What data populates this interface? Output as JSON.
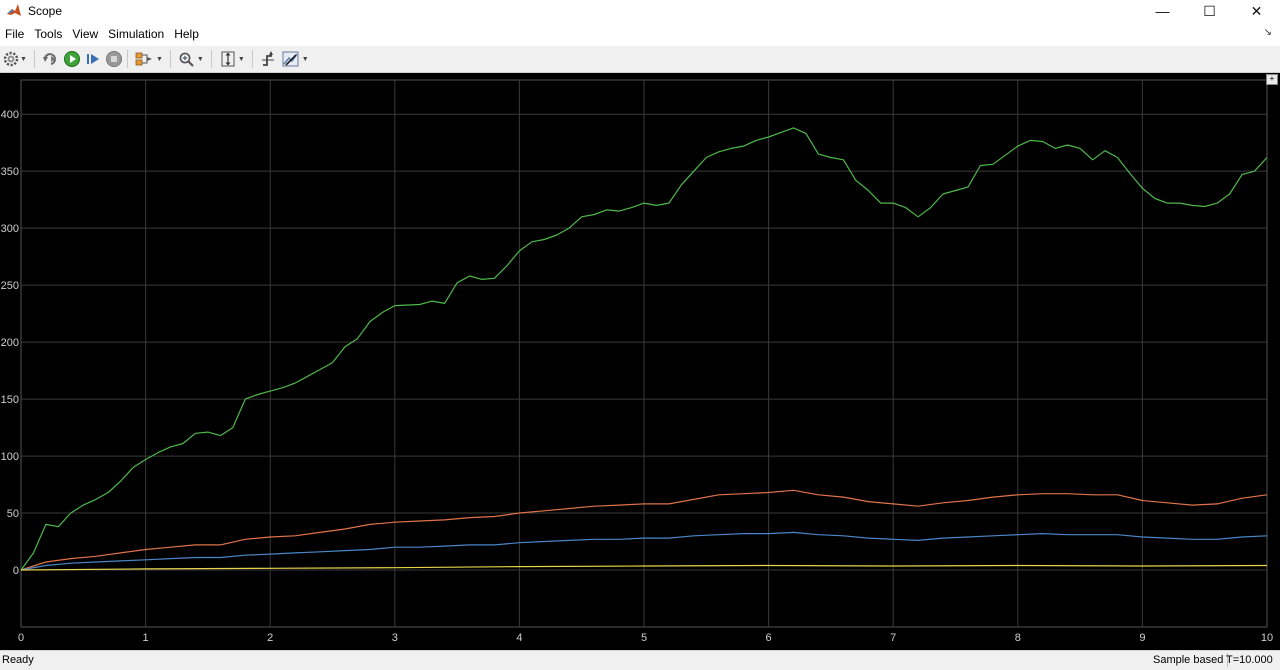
{
  "window": {
    "title": "Scope",
    "minimize_glyph": "—",
    "maximize_glyph": "☐",
    "close_glyph": "✕"
  },
  "menu": {
    "items": [
      "File",
      "Tools",
      "View",
      "Simulation",
      "Help"
    ],
    "undock_glyph": "↘"
  },
  "toolbar": {
    "icons": [
      "settings-icon",
      "step-back-icon",
      "run-icon",
      "step-forward-icon",
      "stop-icon",
      "highlight-block-icon",
      "zoom-icon",
      "scale-axes-icon",
      "triggers-icon",
      "cursor-measurements-icon"
    ]
  },
  "chart_data": {
    "type": "line",
    "xlim": [
      0,
      10
    ],
    "ylim": [
      -50,
      430
    ],
    "x_ticks": [
      0,
      1,
      2,
      3,
      4,
      5,
      6,
      7,
      8,
      9,
      10
    ],
    "y_ticks": [
      0,
      50,
      100,
      150,
      200,
      250,
      300,
      350,
      400
    ],
    "grid": true,
    "background": "#000000",
    "grid_color": "#3a3a3a",
    "tick_color": "#cfcfcf",
    "series": [
      {
        "color": "#4fb84a",
        "points": [
          [
            0,
            0
          ],
          [
            0.1,
            15
          ],
          [
            0.2,
            40
          ],
          [
            0.3,
            38
          ],
          [
            0.4,
            50
          ],
          [
            0.5,
            57
          ],
          [
            0.6,
            62
          ],
          [
            0.7,
            68
          ],
          [
            0.8,
            78
          ],
          [
            0.9,
            90
          ],
          [
            1.0,
            97
          ],
          [
            1.1,
            103
          ],
          [
            1.2,
            108
          ],
          [
            1.3,
            111
          ],
          [
            1.4,
            120
          ],
          [
            1.5,
            121
          ],
          [
            1.6,
            118
          ],
          [
            1.7,
            125
          ],
          [
            1.8,
            150
          ],
          [
            1.9,
            154
          ],
          [
            2.0,
            157
          ],
          [
            2.1,
            160
          ],
          [
            2.2,
            164
          ],
          [
            2.3,
            170
          ],
          [
            2.4,
            176
          ],
          [
            2.5,
            182
          ],
          [
            2.6,
            196
          ],
          [
            2.7,
            203
          ],
          [
            2.8,
            218
          ],
          [
            2.9,
            226
          ],
          [
            3.0,
            232
          ],
          [
            3.2,
            233
          ],
          [
            3.3,
            236
          ],
          [
            3.4,
            234
          ],
          [
            3.5,
            252
          ],
          [
            3.6,
            258
          ],
          [
            3.7,
            255
          ],
          [
            3.8,
            256
          ],
          [
            3.9,
            267
          ],
          [
            4.0,
            280
          ],
          [
            4.1,
            288
          ],
          [
            4.2,
            290
          ],
          [
            4.3,
            294
          ],
          [
            4.4,
            300
          ],
          [
            4.5,
            310
          ],
          [
            4.6,
            312
          ],
          [
            4.7,
            316
          ],
          [
            4.8,
            315
          ],
          [
            4.9,
            318
          ],
          [
            5.0,
            322
          ],
          [
            5.1,
            320
          ],
          [
            5.2,
            322
          ],
          [
            5.3,
            338
          ],
          [
            5.4,
            350
          ],
          [
            5.5,
            362
          ],
          [
            5.6,
            367
          ],
          [
            5.7,
            370
          ],
          [
            5.8,
            372
          ],
          [
            5.9,
            377
          ],
          [
            6.0,
            380
          ],
          [
            6.1,
            384
          ],
          [
            6.2,
            388
          ],
          [
            6.3,
            383
          ],
          [
            6.4,
            365
          ],
          [
            6.5,
            362
          ],
          [
            6.6,
            360
          ],
          [
            6.7,
            342
          ],
          [
            6.8,
            333
          ],
          [
            6.9,
            322
          ],
          [
            7.0,
            322
          ],
          [
            7.1,
            318
          ],
          [
            7.2,
            310
          ],
          [
            7.3,
            318
          ],
          [
            7.4,
            330
          ],
          [
            7.5,
            333
          ],
          [
            7.6,
            336
          ],
          [
            7.7,
            355
          ],
          [
            7.8,
            356
          ],
          [
            7.9,
            364
          ],
          [
            8.0,
            372
          ],
          [
            8.1,
            377
          ],
          [
            8.2,
            376
          ],
          [
            8.3,
            370
          ],
          [
            8.4,
            373
          ],
          [
            8.5,
            370
          ],
          [
            8.6,
            360
          ],
          [
            8.7,
            368
          ],
          [
            8.8,
            362
          ],
          [
            8.9,
            348
          ],
          [
            9.0,
            335
          ],
          [
            9.1,
            326
          ],
          [
            9.2,
            322
          ],
          [
            9.3,
            322
          ],
          [
            9.4,
            320
          ],
          [
            9.5,
            319
          ],
          [
            9.6,
            322
          ],
          [
            9.7,
            330
          ],
          [
            9.8,
            347
          ],
          [
            9.9,
            350
          ],
          [
            10.0,
            362
          ]
        ]
      },
      {
        "color": "#e0734a",
        "points": [
          [
            0,
            0
          ],
          [
            0.2,
            7
          ],
          [
            0.4,
            10
          ],
          [
            0.6,
            12
          ],
          [
            0.8,
            15
          ],
          [
            1.0,
            18
          ],
          [
            1.2,
            20
          ],
          [
            1.4,
            22
          ],
          [
            1.6,
            22
          ],
          [
            1.8,
            27
          ],
          [
            2.0,
            29
          ],
          [
            2.2,
            30
          ],
          [
            2.4,
            33
          ],
          [
            2.6,
            36
          ],
          [
            2.8,
            40
          ],
          [
            3.0,
            42
          ],
          [
            3.2,
            43
          ],
          [
            3.4,
            44
          ],
          [
            3.6,
            46
          ],
          [
            3.8,
            47
          ],
          [
            4.0,
            50
          ],
          [
            4.2,
            52
          ],
          [
            4.4,
            54
          ],
          [
            4.6,
            56
          ],
          [
            4.8,
            57
          ],
          [
            5.0,
            58
          ],
          [
            5.2,
            58
          ],
          [
            5.4,
            62
          ],
          [
            5.6,
            66
          ],
          [
            5.8,
            67
          ],
          [
            6.0,
            68
          ],
          [
            6.2,
            70
          ],
          [
            6.4,
            66
          ],
          [
            6.6,
            64
          ],
          [
            6.8,
            60
          ],
          [
            7.0,
            58
          ],
          [
            7.2,
            56
          ],
          [
            7.4,
            59
          ],
          [
            7.6,
            61
          ],
          [
            7.8,
            64
          ],
          [
            8.0,
            66
          ],
          [
            8.2,
            67
          ],
          [
            8.4,
            67
          ],
          [
            8.6,
            66
          ],
          [
            8.8,
            66
          ],
          [
            9.0,
            61
          ],
          [
            9.2,
            59
          ],
          [
            9.4,
            57
          ],
          [
            9.6,
            58
          ],
          [
            9.8,
            63
          ],
          [
            10.0,
            66
          ]
        ]
      },
      {
        "color": "#4a86c8",
        "points": [
          [
            0,
            0
          ],
          [
            0.2,
            4
          ],
          [
            0.4,
            6
          ],
          [
            0.6,
            7
          ],
          [
            0.8,
            8
          ],
          [
            1.0,
            9
          ],
          [
            1.2,
            10
          ],
          [
            1.4,
            11
          ],
          [
            1.6,
            11
          ],
          [
            1.8,
            13
          ],
          [
            2.0,
            14
          ],
          [
            2.2,
            15
          ],
          [
            2.4,
            16
          ],
          [
            2.6,
            17
          ],
          [
            2.8,
            18
          ],
          [
            3.0,
            20
          ],
          [
            3.2,
            20
          ],
          [
            3.4,
            21
          ],
          [
            3.6,
            22
          ],
          [
            3.8,
            22
          ],
          [
            4.0,
            24
          ],
          [
            4.2,
            25
          ],
          [
            4.4,
            26
          ],
          [
            4.6,
            27
          ],
          [
            4.8,
            27
          ],
          [
            5.0,
            28
          ],
          [
            5.2,
            28
          ],
          [
            5.4,
            30
          ],
          [
            5.6,
            31
          ],
          [
            5.8,
            32
          ],
          [
            6.0,
            32
          ],
          [
            6.2,
            33
          ],
          [
            6.4,
            31
          ],
          [
            6.6,
            30
          ],
          [
            6.8,
            28
          ],
          [
            7.0,
            27
          ],
          [
            7.2,
            26
          ],
          [
            7.4,
            28
          ],
          [
            7.6,
            29
          ],
          [
            7.8,
            30
          ],
          [
            8.0,
            31
          ],
          [
            8.2,
            32
          ],
          [
            8.4,
            31
          ],
          [
            8.6,
            31
          ],
          [
            8.8,
            31
          ],
          [
            9.0,
            29
          ],
          [
            9.2,
            28
          ],
          [
            9.4,
            27
          ],
          [
            9.6,
            27
          ],
          [
            9.8,
            29
          ],
          [
            10.0,
            30
          ]
        ]
      },
      {
        "color": "#e8d44a",
        "points": [
          [
            0,
            0
          ],
          [
            1,
            1
          ],
          [
            2,
            1.5
          ],
          [
            3,
            2
          ],
          [
            4,
            3
          ],
          [
            5,
            3.5
          ],
          [
            6,
            4
          ],
          [
            7,
            3.5
          ],
          [
            8,
            4
          ],
          [
            9,
            3.5
          ],
          [
            10,
            4
          ]
        ]
      }
    ]
  },
  "status": {
    "left": "Ready",
    "mode": "Sample based",
    "time": "T=10.000"
  }
}
